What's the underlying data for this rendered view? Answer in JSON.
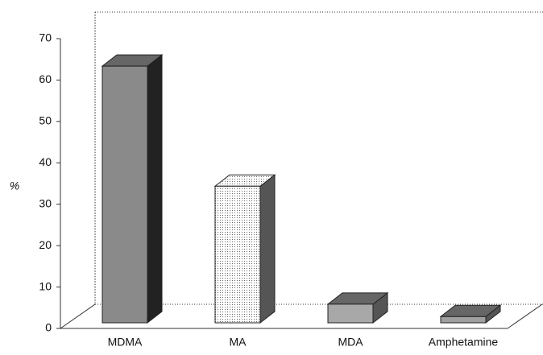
{
  "chart_data": {
    "type": "bar3d",
    "y_label": "%",
    "categories": [
      "MDMA",
      "MA",
      "MDA",
      "Amphetamine"
    ],
    "values": [
      62,
      33,
      4.5,
      1.5
    ],
    "colors": [
      "#8a8a8a",
      "#ececec",
      "#a8a8a8",
      "#a0a0a0"
    ],
    "ylim": [
      0,
      70
    ],
    "yticks": [
      0,
      10,
      20,
      30,
      40,
      50,
      60,
      70
    ]
  }
}
